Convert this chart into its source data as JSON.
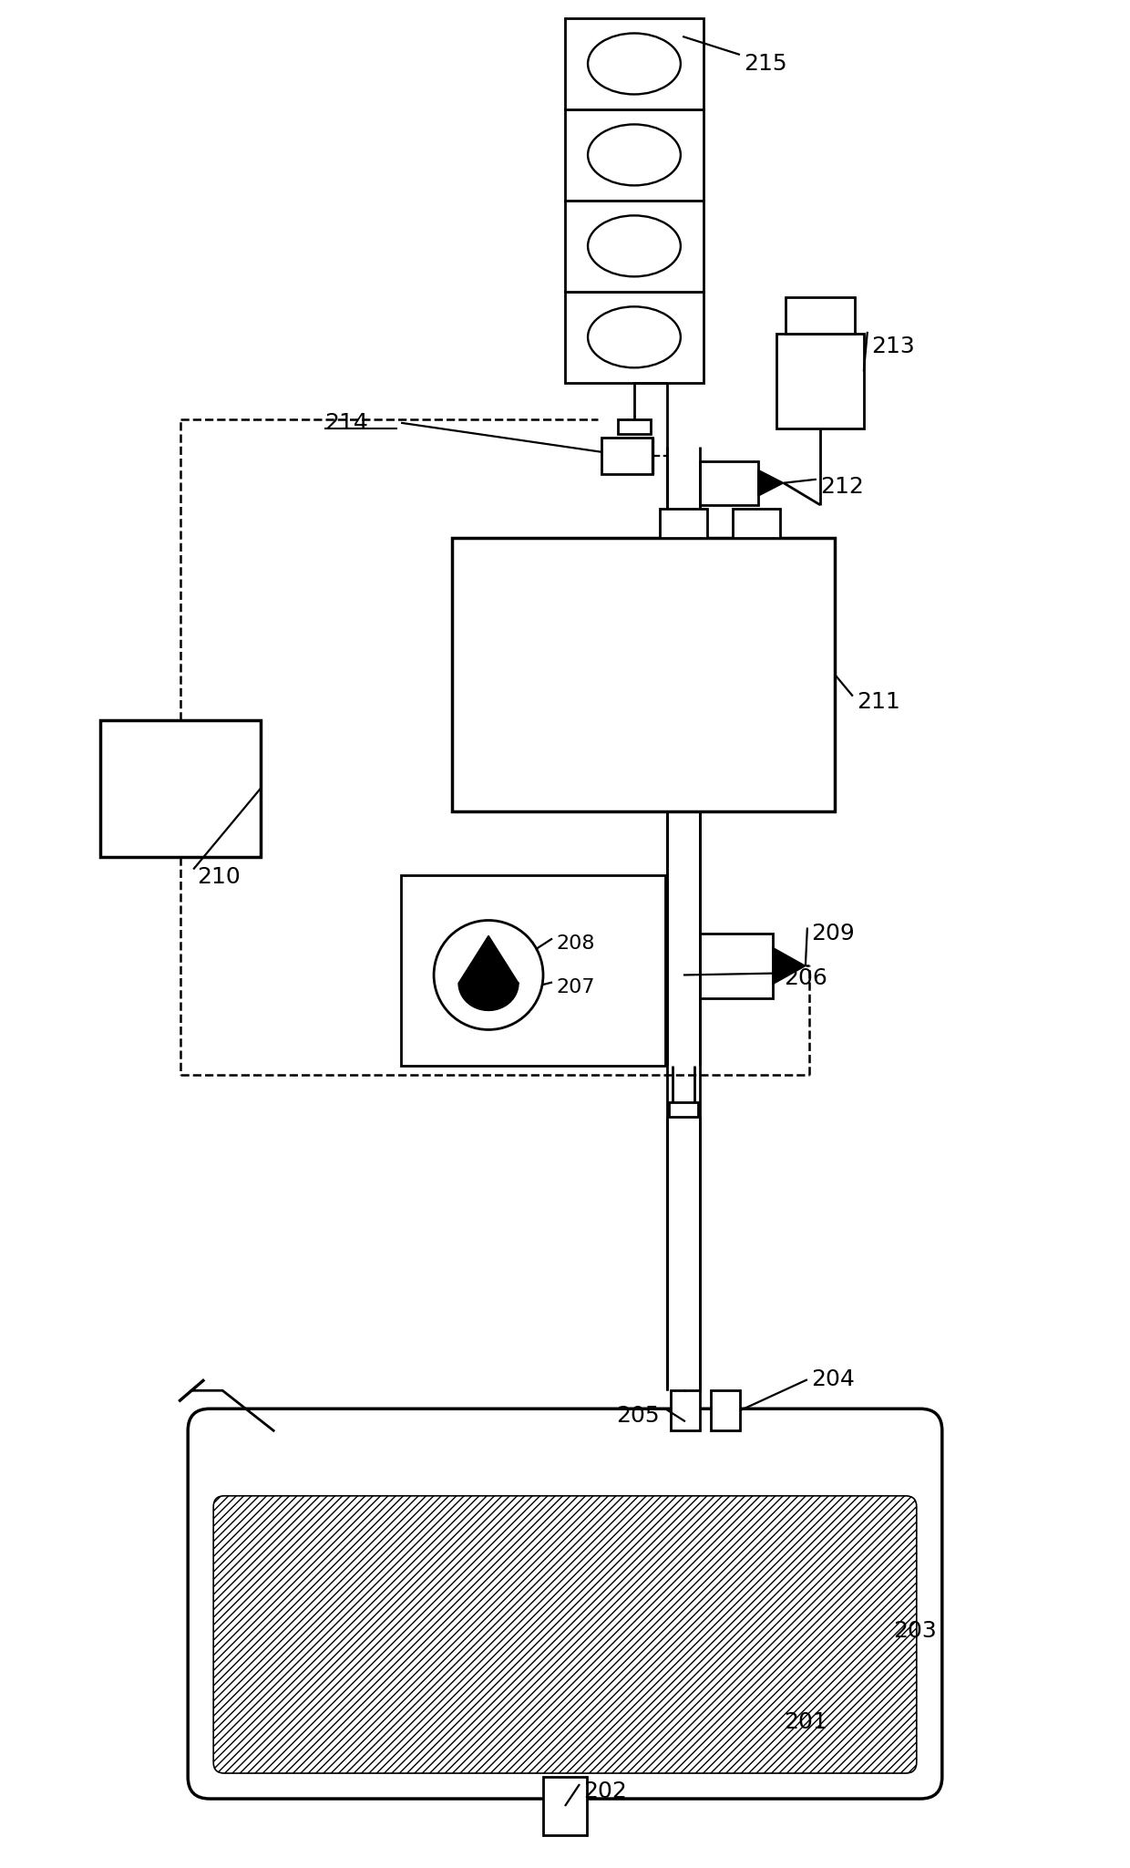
{
  "bg_color": "#ffffff",
  "lc": "#000000",
  "lw": 2.0,
  "fs": 18,
  "figsize": [
    12.4,
    20.49
  ],
  "dpi": 100
}
